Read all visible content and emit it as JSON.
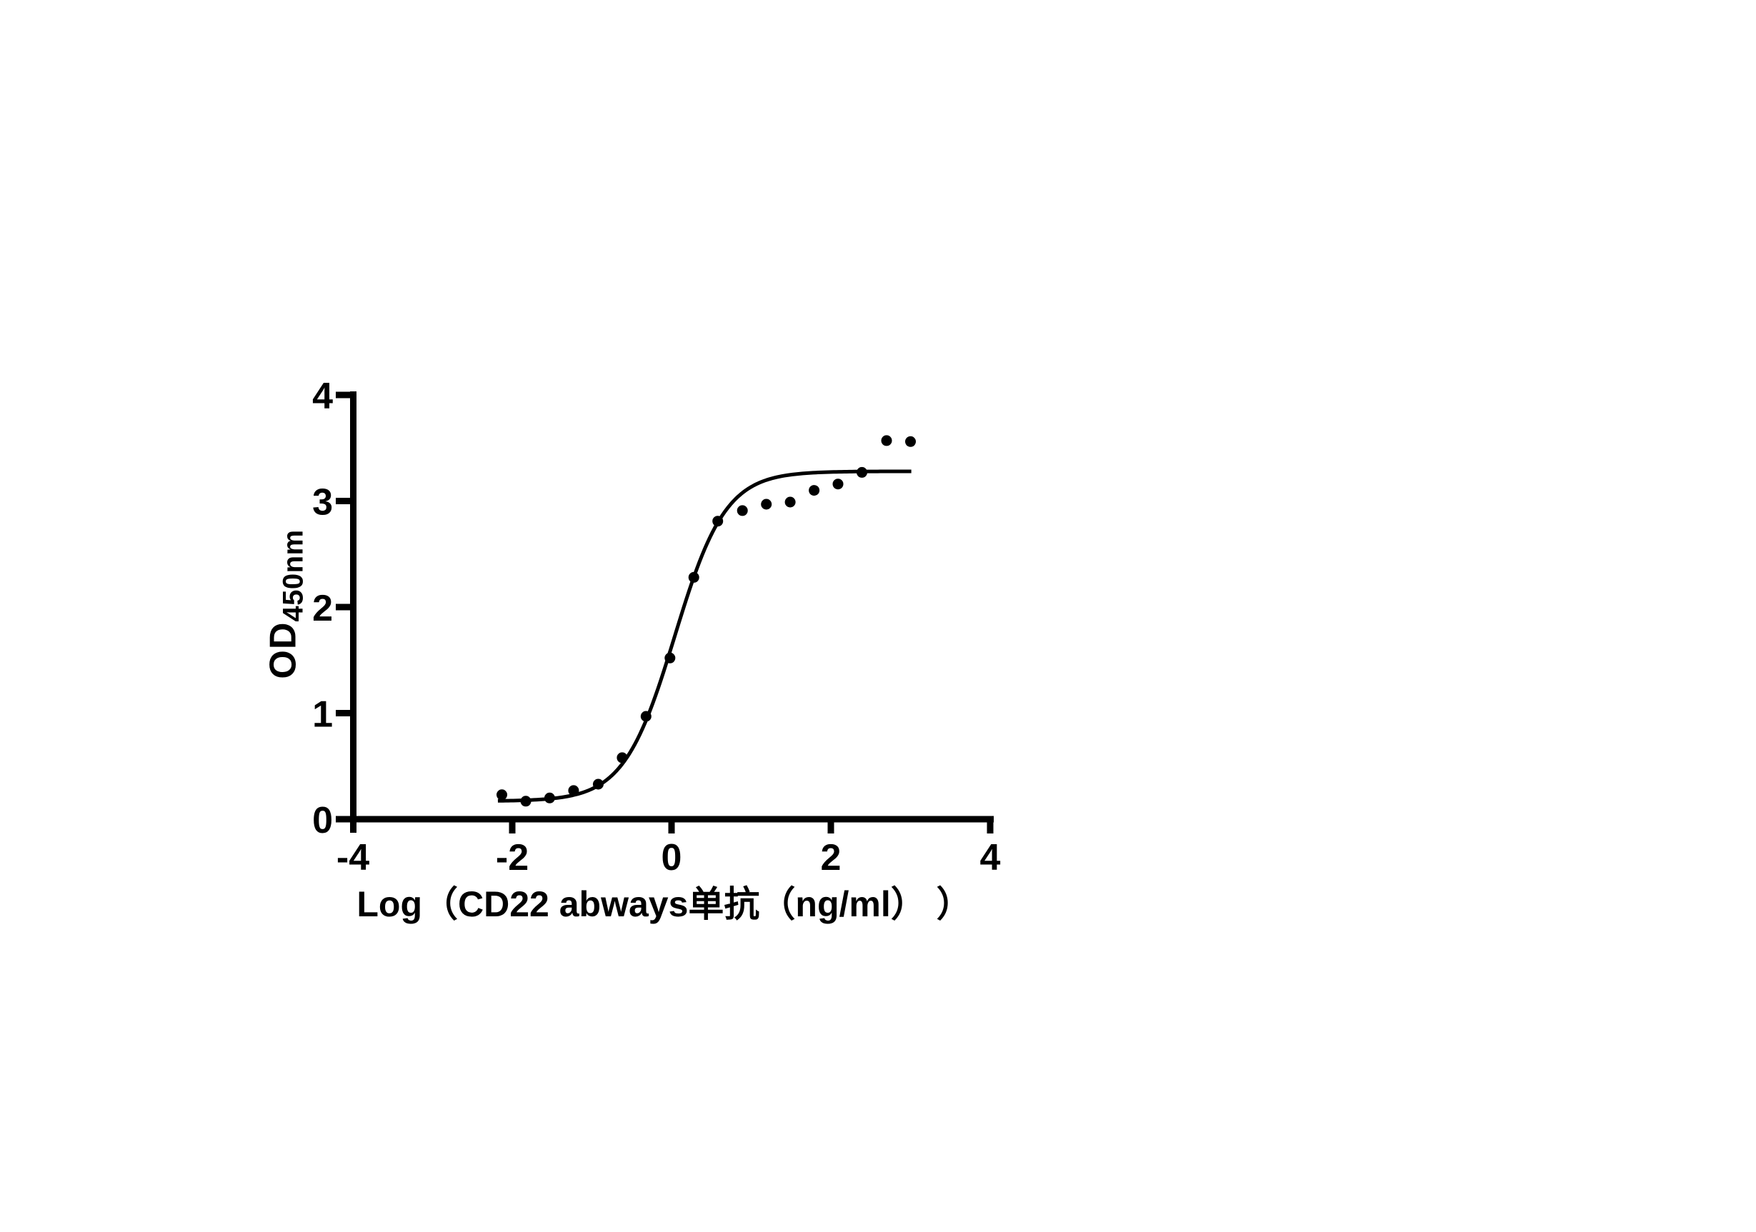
{
  "figure": {
    "background_color": "#ffffff",
    "ink_color": "#000000"
  },
  "chart_data": {
    "type": "scatter",
    "title": "",
    "xlabel": "Log（CD22 abways单抗（ng/ml） ）",
    "ylabel_main": "OD",
    "ylabel_sub": "450nm",
    "xlim": [
      -4,
      4
    ],
    "ylim": [
      0,
      4
    ],
    "x_ticks": [
      -4,
      -2,
      0,
      2,
      4
    ],
    "y_ticks": [
      0,
      1,
      2,
      3,
      4
    ],
    "grid": false,
    "legend": "none",
    "marker_style": "filled-circle",
    "marker_color": "#000000",
    "curve_color": "#000000",
    "points": [
      {
        "x": -2.13,
        "y": 0.23
      },
      {
        "x": -1.83,
        "y": 0.17
      },
      {
        "x": -1.53,
        "y": 0.2
      },
      {
        "x": -1.23,
        "y": 0.27
      },
      {
        "x": -0.92,
        "y": 0.33
      },
      {
        "x": -0.62,
        "y": 0.58
      },
      {
        "x": -0.32,
        "y": 0.97
      },
      {
        "x": -0.02,
        "y": 1.52
      },
      {
        "x": 0.28,
        "y": 2.28
      },
      {
        "x": 0.58,
        "y": 2.81
      },
      {
        "x": 0.89,
        "y": 2.91
      },
      {
        "x": 1.19,
        "y": 2.97
      },
      {
        "x": 1.49,
        "y": 2.99
      },
      {
        "x": 1.79,
        "y": 3.1
      },
      {
        "x": 2.09,
        "y": 3.16
      },
      {
        "x": 2.39,
        "y": 3.27
      },
      {
        "x": 2.7,
        "y": 3.57
      },
      {
        "x": 3.0,
        "y": 3.56
      }
    ],
    "fit_curve": {
      "model": "4PL",
      "bottom": 0.17,
      "top": 3.28,
      "logEC50": 0.04,
      "hillslope": 1.36,
      "x_start": -2.18,
      "x_end": 3.01
    }
  }
}
